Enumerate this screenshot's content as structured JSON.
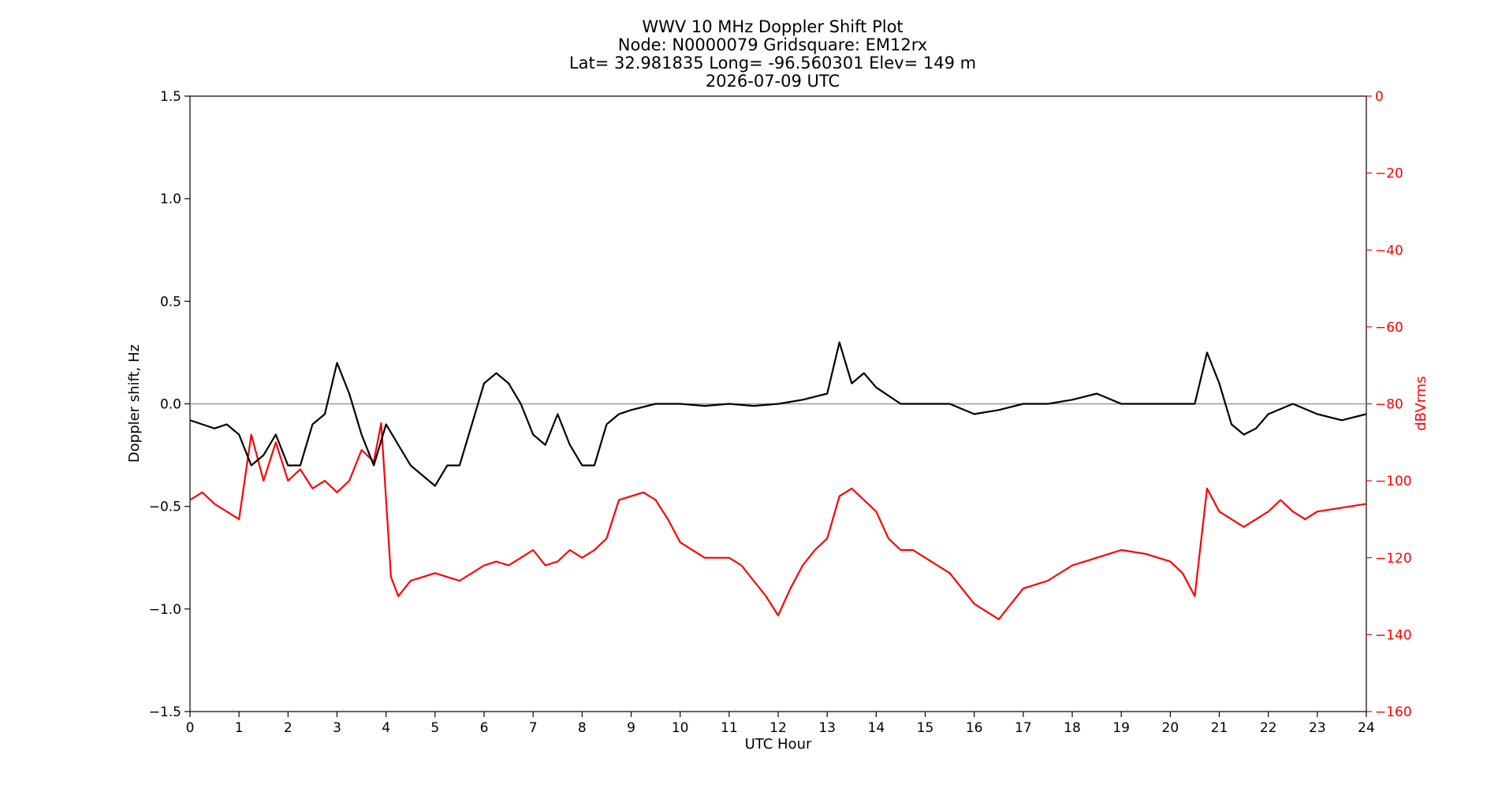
{
  "chart_data": {
    "type": "line",
    "title_lines": [
      "WWV 10 MHz Doppler Shift Plot",
      "Node:  N0000079     Gridsquare:  EM12rx",
      "Lat= 32.981835    Long= -96.560301    Elev= 149 m",
      "2026-07-09  UTC"
    ],
    "xlabel": "UTC Hour",
    "ylabel_left": "Doppler shift, Hz",
    "ylabel_right": "dBVrms",
    "xlim": [
      0,
      24
    ],
    "ylim_left": [
      -1.5,
      1.5
    ],
    "ylim_right": [
      -160,
      0
    ],
    "x_ticks": [
      "0",
      "1",
      "2",
      "3",
      "4",
      "5",
      "6",
      "7",
      "8",
      "9",
      "10",
      "11",
      "12",
      "13",
      "14",
      "15",
      "16",
      "17",
      "18",
      "19",
      "20",
      "21",
      "22",
      "23",
      "24"
    ],
    "y_ticks_left": [
      "1.5",
      "1.0",
      "0.5",
      "0.0",
      "−0.5",
      "−1.0",
      "−1.5"
    ],
    "y_ticks_right": [
      "0",
      "−20",
      "−40",
      "−60",
      "−80",
      "−100",
      "−120",
      "−140",
      "−160"
    ],
    "zero_line": 0,
    "grid": false,
    "colors": {
      "doppler": "#000000",
      "power": "#ff0000",
      "zero_line": "#999999",
      "right_axis": "#ff0000"
    },
    "series": [
      {
        "axis": "left",
        "x": [
          0,
          0.25,
          0.5,
          0.75,
          1,
          1.25,
          1.5,
          1.75,
          2,
          2.25,
          2.5,
          2.75,
          3,
          3.25,
          3.5,
          3.75,
          4,
          4.25,
          4.5,
          4.75,
          5,
          5.25,
          5.5,
          5.75,
          6,
          6.25,
          6.5,
          6.75,
          7,
          7.25,
          7.5,
          7.75,
          8,
          8.25,
          8.5,
          8.75,
          9,
          9.5,
          10,
          10.5,
          11,
          11.5,
          12,
          12.5,
          13,
          13.25,
          13.5,
          13.75,
          14,
          14.5,
          15,
          15.5,
          16,
          16.5,
          17,
          17.5,
          18,
          18.5,
          19,
          19.5,
          20,
          20.5,
          20.75,
          21,
          21.25,
          21.5,
          21.75,
          22,
          22.5,
          23,
          23.5,
          24
        ],
        "values": [
          -0.08,
          -0.1,
          -0.12,
          -0.1,
          -0.15,
          -0.3,
          -0.25,
          -0.15,
          -0.3,
          -0.3,
          -0.1,
          -0.05,
          0.2,
          0.05,
          -0.15,
          -0.3,
          -0.1,
          -0.2,
          -0.3,
          -0.35,
          -0.4,
          -0.3,
          -0.3,
          -0.1,
          0.1,
          0.15,
          0.1,
          0.0,
          -0.15,
          -0.2,
          -0.05,
          -0.2,
          -0.3,
          -0.3,
          -0.1,
          -0.05,
          -0.03,
          0.0,
          0.0,
          -0.01,
          0.0,
          -0.01,
          0.0,
          0.02,
          0.05,
          0.3,
          0.1,
          0.15,
          0.08,
          0.0,
          0.0,
          0.0,
          -0.05,
          -0.03,
          0.0,
          0.0,
          0.02,
          0.05,
          0.0,
          0.0,
          0.0,
          0.0,
          0.25,
          0.1,
          -0.1,
          -0.15,
          -0.12,
          -0.05,
          0.0,
          -0.05,
          -0.08,
          -0.05
        ]
      },
      {
        "axis": "right",
        "x": [
          0,
          0.25,
          0.5,
          0.75,
          1,
          1.25,
          1.5,
          1.75,
          2,
          2.25,
          2.5,
          2.75,
          3,
          3.25,
          3.5,
          3.75,
          3.9,
          4.1,
          4.25,
          4.5,
          4.75,
          5,
          5.25,
          5.5,
          5.75,
          6,
          6.25,
          6.5,
          6.75,
          7,
          7.25,
          7.5,
          7.75,
          8,
          8.25,
          8.5,
          8.75,
          9,
          9.25,
          9.5,
          9.75,
          10,
          10.5,
          11,
          11.25,
          11.5,
          11.75,
          12,
          12.25,
          12.5,
          12.75,
          13,
          13.25,
          13.5,
          13.75,
          14,
          14.25,
          14.5,
          14.75,
          15,
          15.5,
          16,
          16.5,
          17,
          17.5,
          18,
          18.5,
          19,
          19.5,
          20,
          20.25,
          20.5,
          20.75,
          21,
          21.5,
          22,
          22.25,
          22.5,
          22.75,
          23,
          23.5,
          24
        ],
        "values": [
          -105,
          -103,
          -106,
          -108,
          -110,
          -88,
          -100,
          -90,
          -100,
          -97,
          -102,
          -100,
          -103,
          -100,
          -92,
          -95,
          -85,
          -125,
          -130,
          -126,
          -125,
          -124,
          -125,
          -126,
          -124,
          -122,
          -121,
          -122,
          -120,
          -118,
          -122,
          -121,
          -118,
          -120,
          -118,
          -115,
          -105,
          -104,
          -103,
          -105,
          -110,
          -116,
          -120,
          -120,
          -122,
          -126,
          -130,
          -135,
          -128,
          -122,
          -118,
          -115,
          -104,
          -102,
          -105,
          -108,
          -115,
          -118,
          -118,
          -120,
          -124,
          -132,
          -136,
          -128,
          -126,
          -122,
          -120,
          -118,
          -119,
          -121,
          -124,
          -130,
          -102,
          -108,
          -112,
          -108,
          -105,
          -108,
          -110,
          -108,
          -107,
          -106
        ]
      }
    ]
  }
}
